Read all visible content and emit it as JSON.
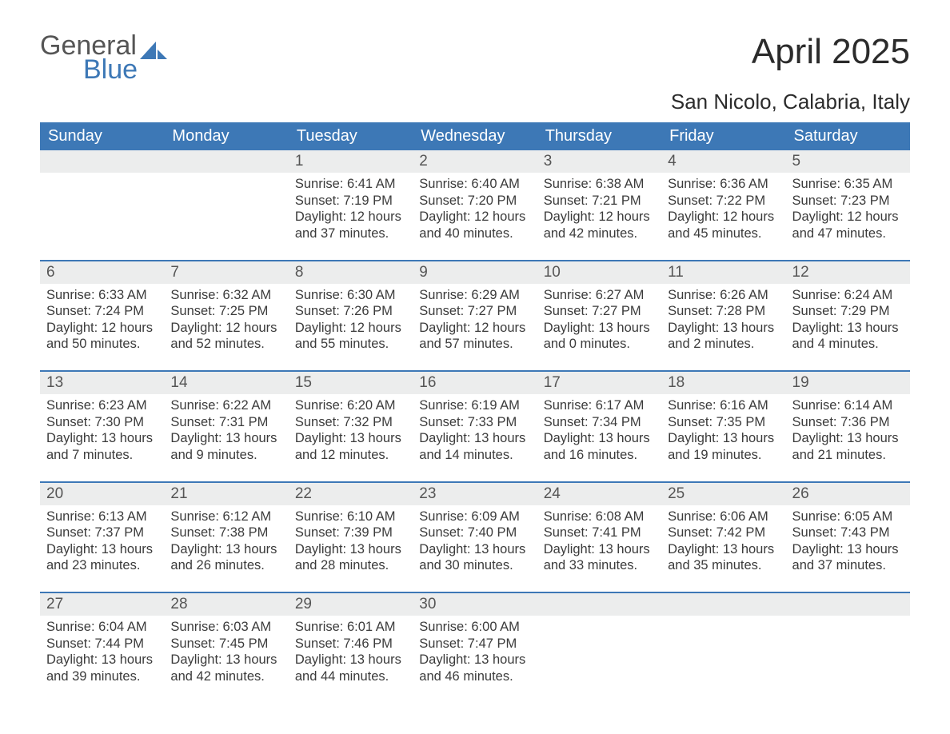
{
  "logo": {
    "top": "General",
    "bottom": "Blue",
    "word_color": "#555555",
    "blue_color": "#3d78b6"
  },
  "title": "April 2025",
  "location": "San Nicolo, Calabria, Italy",
  "colors": {
    "header_bg": "#3d78b6",
    "header_text": "#ffffff",
    "daynum_bg": "#eceded",
    "daynum_text": "#555555",
    "rule": "#3d78b6",
    "body_text": "#3b3b3b",
    "page_bg": "#ffffff"
  },
  "fonts": {
    "title_pt": 44,
    "location_pt": 26,
    "weekday_pt": 20,
    "daynum_pt": 19,
    "body_pt": 16.5
  },
  "weekdays": [
    "Sunday",
    "Monday",
    "Tuesday",
    "Wednesday",
    "Thursday",
    "Friday",
    "Saturday"
  ],
  "weeks": [
    [
      {
        "num": "",
        "sunrise": "",
        "sunset": "",
        "daylight": ""
      },
      {
        "num": "",
        "sunrise": "",
        "sunset": "",
        "daylight": ""
      },
      {
        "num": "1",
        "sunrise": "Sunrise: 6:41 AM",
        "sunset": "Sunset: 7:19 PM",
        "daylight": "Daylight: 12 hours and 37 minutes."
      },
      {
        "num": "2",
        "sunrise": "Sunrise: 6:40 AM",
        "sunset": "Sunset: 7:20 PM",
        "daylight": "Daylight: 12 hours and 40 minutes."
      },
      {
        "num": "3",
        "sunrise": "Sunrise: 6:38 AM",
        "sunset": "Sunset: 7:21 PM",
        "daylight": "Daylight: 12 hours and 42 minutes."
      },
      {
        "num": "4",
        "sunrise": "Sunrise: 6:36 AM",
        "sunset": "Sunset: 7:22 PM",
        "daylight": "Daylight: 12 hours and 45 minutes."
      },
      {
        "num": "5",
        "sunrise": "Sunrise: 6:35 AM",
        "sunset": "Sunset: 7:23 PM",
        "daylight": "Daylight: 12 hours and 47 minutes."
      }
    ],
    [
      {
        "num": "6",
        "sunrise": "Sunrise: 6:33 AM",
        "sunset": "Sunset: 7:24 PM",
        "daylight": "Daylight: 12 hours and 50 minutes."
      },
      {
        "num": "7",
        "sunrise": "Sunrise: 6:32 AM",
        "sunset": "Sunset: 7:25 PM",
        "daylight": "Daylight: 12 hours and 52 minutes."
      },
      {
        "num": "8",
        "sunrise": "Sunrise: 6:30 AM",
        "sunset": "Sunset: 7:26 PM",
        "daylight": "Daylight: 12 hours and 55 minutes."
      },
      {
        "num": "9",
        "sunrise": "Sunrise: 6:29 AM",
        "sunset": "Sunset: 7:27 PM",
        "daylight": "Daylight: 12 hours and 57 minutes."
      },
      {
        "num": "10",
        "sunrise": "Sunrise: 6:27 AM",
        "sunset": "Sunset: 7:27 PM",
        "daylight": "Daylight: 13 hours and 0 minutes."
      },
      {
        "num": "11",
        "sunrise": "Sunrise: 6:26 AM",
        "sunset": "Sunset: 7:28 PM",
        "daylight": "Daylight: 13 hours and 2 minutes."
      },
      {
        "num": "12",
        "sunrise": "Sunrise: 6:24 AM",
        "sunset": "Sunset: 7:29 PM",
        "daylight": "Daylight: 13 hours and 4 minutes."
      }
    ],
    [
      {
        "num": "13",
        "sunrise": "Sunrise: 6:23 AM",
        "sunset": "Sunset: 7:30 PM",
        "daylight": "Daylight: 13 hours and 7 minutes."
      },
      {
        "num": "14",
        "sunrise": "Sunrise: 6:22 AM",
        "sunset": "Sunset: 7:31 PM",
        "daylight": "Daylight: 13 hours and 9 minutes."
      },
      {
        "num": "15",
        "sunrise": "Sunrise: 6:20 AM",
        "sunset": "Sunset: 7:32 PM",
        "daylight": "Daylight: 13 hours and 12 minutes."
      },
      {
        "num": "16",
        "sunrise": "Sunrise: 6:19 AM",
        "sunset": "Sunset: 7:33 PM",
        "daylight": "Daylight: 13 hours and 14 minutes."
      },
      {
        "num": "17",
        "sunrise": "Sunrise: 6:17 AM",
        "sunset": "Sunset: 7:34 PM",
        "daylight": "Daylight: 13 hours and 16 minutes."
      },
      {
        "num": "18",
        "sunrise": "Sunrise: 6:16 AM",
        "sunset": "Sunset: 7:35 PM",
        "daylight": "Daylight: 13 hours and 19 minutes."
      },
      {
        "num": "19",
        "sunrise": "Sunrise: 6:14 AM",
        "sunset": "Sunset: 7:36 PM",
        "daylight": "Daylight: 13 hours and 21 minutes."
      }
    ],
    [
      {
        "num": "20",
        "sunrise": "Sunrise: 6:13 AM",
        "sunset": "Sunset: 7:37 PM",
        "daylight": "Daylight: 13 hours and 23 minutes."
      },
      {
        "num": "21",
        "sunrise": "Sunrise: 6:12 AM",
        "sunset": "Sunset: 7:38 PM",
        "daylight": "Daylight: 13 hours and 26 minutes."
      },
      {
        "num": "22",
        "sunrise": "Sunrise: 6:10 AM",
        "sunset": "Sunset: 7:39 PM",
        "daylight": "Daylight: 13 hours and 28 minutes."
      },
      {
        "num": "23",
        "sunrise": "Sunrise: 6:09 AM",
        "sunset": "Sunset: 7:40 PM",
        "daylight": "Daylight: 13 hours and 30 minutes."
      },
      {
        "num": "24",
        "sunrise": "Sunrise: 6:08 AM",
        "sunset": "Sunset: 7:41 PM",
        "daylight": "Daylight: 13 hours and 33 minutes."
      },
      {
        "num": "25",
        "sunrise": "Sunrise: 6:06 AM",
        "sunset": "Sunset: 7:42 PM",
        "daylight": "Daylight: 13 hours and 35 minutes."
      },
      {
        "num": "26",
        "sunrise": "Sunrise: 6:05 AM",
        "sunset": "Sunset: 7:43 PM",
        "daylight": "Daylight: 13 hours and 37 minutes."
      }
    ],
    [
      {
        "num": "27",
        "sunrise": "Sunrise: 6:04 AM",
        "sunset": "Sunset: 7:44 PM",
        "daylight": "Daylight: 13 hours and 39 minutes."
      },
      {
        "num": "28",
        "sunrise": "Sunrise: 6:03 AM",
        "sunset": "Sunset: 7:45 PM",
        "daylight": "Daylight: 13 hours and 42 minutes."
      },
      {
        "num": "29",
        "sunrise": "Sunrise: 6:01 AM",
        "sunset": "Sunset: 7:46 PM",
        "daylight": "Daylight: 13 hours and 44 minutes."
      },
      {
        "num": "30",
        "sunrise": "Sunrise: 6:00 AM",
        "sunset": "Sunset: 7:47 PM",
        "daylight": "Daylight: 13 hours and 46 minutes."
      },
      {
        "num": "",
        "sunrise": "",
        "sunset": "",
        "daylight": ""
      },
      {
        "num": "",
        "sunrise": "",
        "sunset": "",
        "daylight": ""
      },
      {
        "num": "",
        "sunrise": "",
        "sunset": "",
        "daylight": ""
      }
    ]
  ]
}
